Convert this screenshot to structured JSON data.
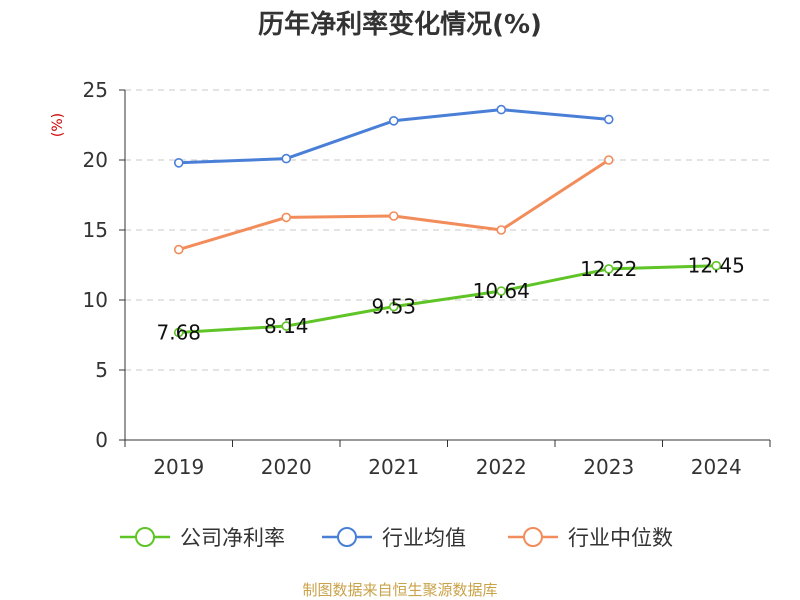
{
  "chart_data": {
    "type": "line",
    "title": "历年净利率变化情况(%)",
    "ylabel": "(%)",
    "xlabel": "",
    "categories": [
      "2019",
      "2020",
      "2021",
      "2022",
      "2023",
      "2024"
    ],
    "yticks": [
      "0",
      "5",
      "10",
      "15",
      "20",
      "25"
    ],
    "ylim": [
      0,
      25
    ],
    "grid": true,
    "legend_position": "bottom",
    "series": [
      {
        "name": "公司净利率",
        "color": "#5fc425",
        "values": [
          7.68,
          8.14,
          9.53,
          10.64,
          12.22,
          12.45
        ],
        "labels": [
          "7.68",
          "8.14",
          "9.53",
          "10.64",
          "12.22",
          "12.45"
        ]
      },
      {
        "name": "行业均值",
        "color": "#4a7fd8",
        "values": [
          19.8,
          20.1,
          22.8,
          23.6,
          22.9,
          null
        ]
      },
      {
        "name": "行业中位数",
        "color": "#f28c5a",
        "values": [
          13.6,
          15.9,
          16.0,
          15.0,
          20.0,
          null
        ]
      }
    ]
  },
  "source": "制图数据来自恒生聚源数据库"
}
